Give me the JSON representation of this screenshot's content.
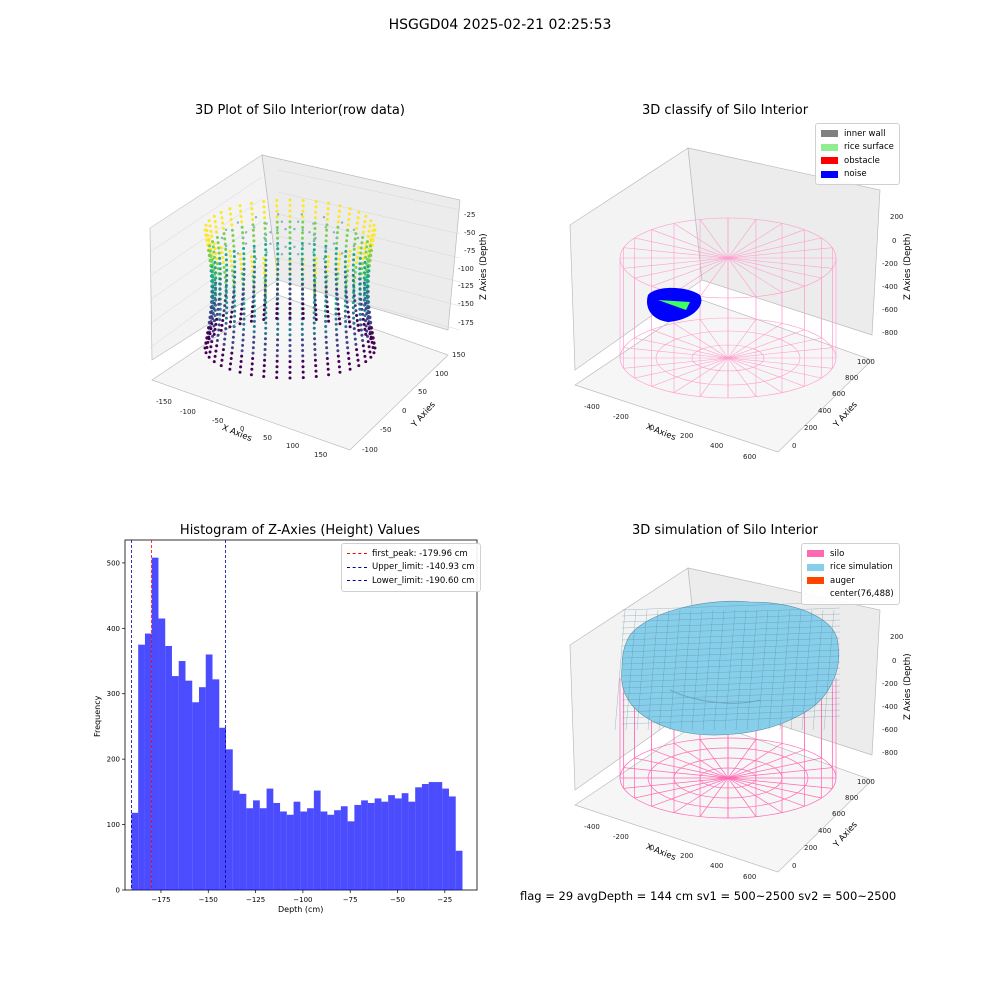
{
  "suptitle": "HSGGD04 2025-02-21 02:25:53",
  "panels": {
    "raw": {
      "title": "3D Plot of Silo Interior(row data)",
      "xlabel": "X Axies",
      "ylabel": "Y Axies",
      "zlabel": "Z Axies (Depth)",
      "xticks": [
        "-150",
        "-100",
        "-50",
        "0",
        "50",
        "100",
        "150"
      ],
      "yticks": [
        "-100",
        "-50",
        "0",
        "50",
        "100",
        "150"
      ],
      "zticks": [
        "-25",
        "-50",
        "-75",
        "-100",
        "-125",
        "-150",
        "-175"
      ]
    },
    "classify": {
      "title": "3D classify of Silo Interior",
      "xlabel": "X Axies",
      "ylabel": "Y Axies",
      "zlabel": "Z Axies (Depth)",
      "xticks": [
        "-400",
        "-200",
        "0",
        "200",
        "400",
        "600"
      ],
      "yticks": [
        "0",
        "200",
        "400",
        "600",
        "800",
        "1000"
      ],
      "zticks": [
        "200",
        "0",
        "-200",
        "-400",
        "-600",
        "-800"
      ],
      "legend": [
        {
          "label": "inner wall",
          "color": "#808080"
        },
        {
          "label": "rice surface",
          "color": "#90ee90"
        },
        {
          "label": "obstacle",
          "color": "#ff0000"
        },
        {
          "label": "noise",
          "color": "#0000ff"
        }
      ]
    },
    "simulation": {
      "title": "3D simulation of Silo Interior",
      "xlabel": "X Axies",
      "ylabel": "Y Axies",
      "zlabel": "Z Axies (Depth)",
      "xticks": [
        "-400",
        "-200",
        "0",
        "200",
        "400",
        "600"
      ],
      "yticks": [
        "0",
        "200",
        "400",
        "600",
        "800",
        "1000"
      ],
      "zticks": [
        "200",
        "0",
        "-200",
        "-400",
        "-600",
        "-800"
      ],
      "legend": [
        {
          "label": "silo",
          "color": "#ff69b4"
        },
        {
          "label": "rice simulation",
          "color": "#87ceeb"
        },
        {
          "label": "auger",
          "color": "#ff4500"
        },
        {
          "label": "center(76,488)",
          "color": ""
        }
      ]
    }
  },
  "status_text": "flag = 29  avgDepth = 144 cm  sv1 = 500~2500  sv2 = 500~2500",
  "chart_data": [
    {
      "type": "bar",
      "title": "Histogram of Z-Axies (Height) Values",
      "xlabel": "Depth (cm)",
      "ylabel": "Frequency",
      "xlim": [
        -194,
        -8
      ],
      "ylim": [
        0,
        535
      ],
      "bin_start": -190.6,
      "bin_width": 3.57,
      "values": [
        118,
        375,
        392,
        508,
        415,
        373,
        327,
        350,
        320,
        287,
        310,
        360,
        322,
        248,
        215,
        152,
        147,
        125,
        137,
        125,
        155,
        133,
        120,
        115,
        135,
        120,
        125,
        152,
        120,
        115,
        122,
        128,
        105,
        130,
        137,
        133,
        140,
        135,
        145,
        140,
        148,
        135,
        157,
        162,
        165,
        165,
        155,
        143,
        60
      ],
      "bar_color": "#0000ff",
      "xticks": [
        -175,
        -150,
        -125,
        -100,
        -75,
        -50,
        -25
      ],
      "xtick_labels": [
        "−175",
        "−150",
        "−125",
        "−100",
        "−75",
        "−50",
        "−25"
      ],
      "yticks": [
        0,
        100,
        200,
        300,
        400,
        500
      ],
      "vlines": [
        {
          "label": "first_peak: -179.96 cm",
          "x": -179.96,
          "color": "#ff0000"
        },
        {
          "label": "Upper_limit: -140.93 cm",
          "x": -140.93,
          "color": "#0000aa"
        },
        {
          "label": "Lower_limit: -190.60 cm",
          "x": -190.6,
          "color": "#0000aa"
        }
      ],
      "legend_position": "top-right"
    }
  ]
}
